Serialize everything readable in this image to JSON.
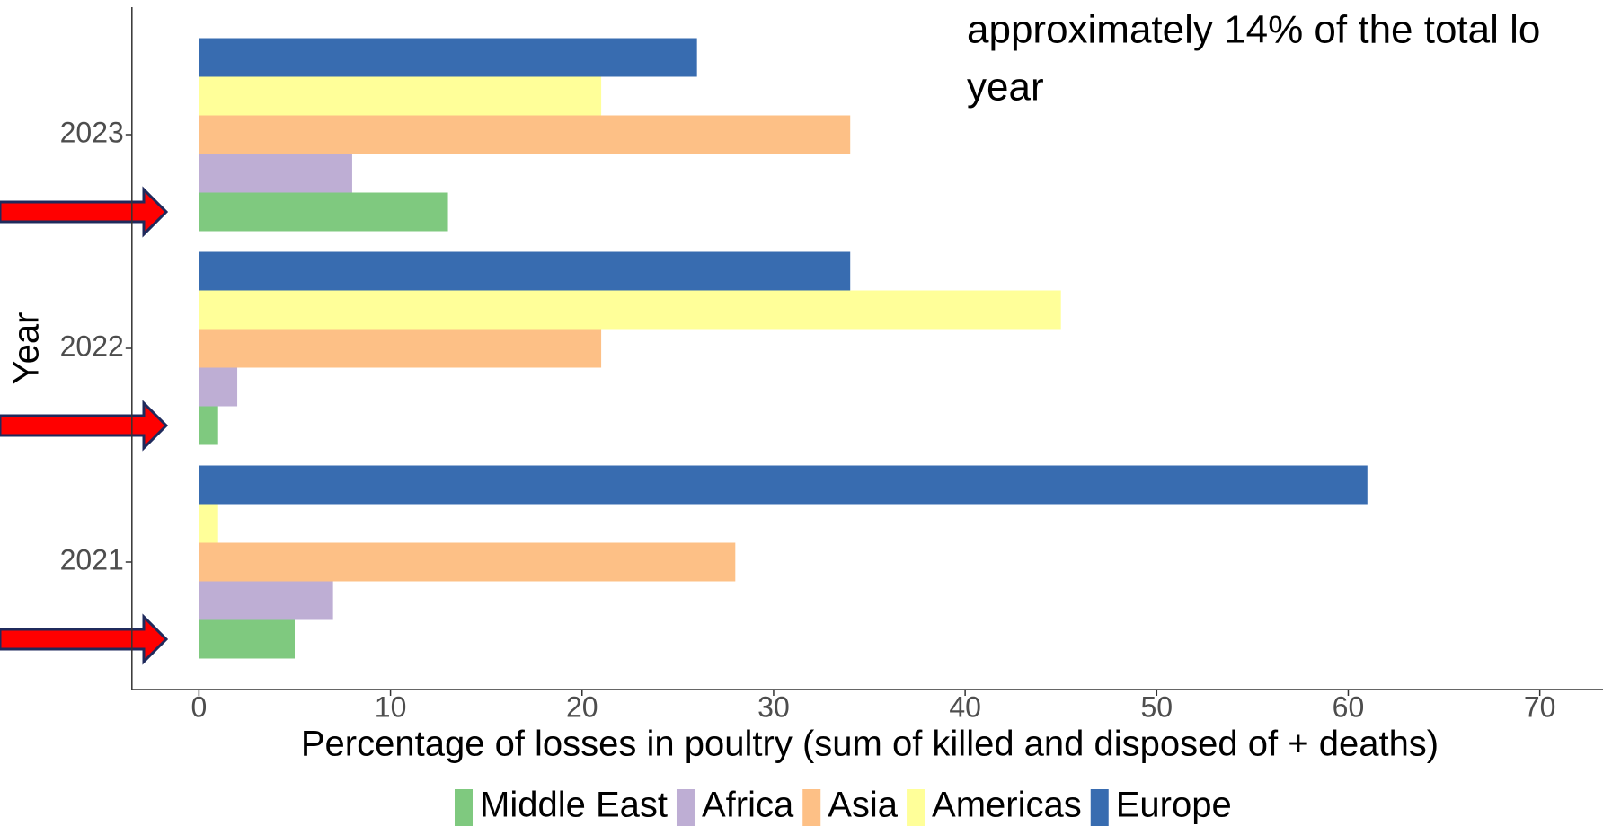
{
  "chart_data": {
    "type": "barh",
    "annotation": [
      "approximately 14% of the total lo",
      "year"
    ],
    "xlabel": "Percentage of losses in poultry (sum of killed and disposed of + deaths)",
    "ylabel": "Year",
    "categories": [
      "2021",
      "2022",
      "2023"
    ],
    "series": [
      {
        "name": "Middle East",
        "color": "#7fc97f",
        "values": [
          5,
          1,
          13
        ]
      },
      {
        "name": "Africa",
        "color": "#beaed4",
        "values": [
          7,
          2,
          8
        ]
      },
      {
        "name": "Asia",
        "color": "#fdc086",
        "values": [
          28,
          21,
          34
        ]
      },
      {
        "name": "Americas",
        "color": "#ffff99",
        "values": [
          1,
          45,
          21
        ]
      },
      {
        "name": "Europe",
        "color": "#386cb0",
        "values": [
          61,
          34,
          26
        ]
      }
    ],
    "xlim": [
      -3.5,
      73.3
    ],
    "xticks": [
      0,
      10,
      20,
      30,
      40,
      50,
      60,
      70
    ],
    "grid": false,
    "legend": "bottom"
  }
}
